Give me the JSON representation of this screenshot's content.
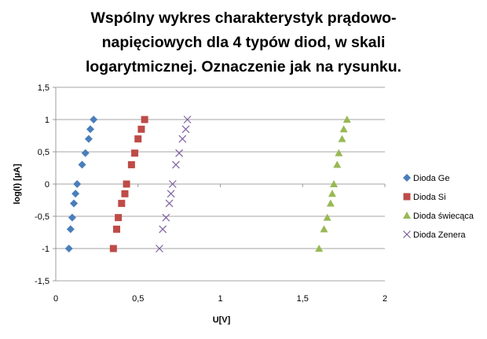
{
  "chart_data": {
    "type": "scatter",
    "title": "Wspólny wykres charakterystyk prądowo-napięciowych dla 4 typów diod, w skali logarytmicznej. Oznaczenie jak na rysunku.",
    "title_lines": [
      "Wspólny wykres charakterystyk prądowo-",
      "napięciowych dla 4 typów diod, w skali",
      "logarytmicznej. Oznaczenie jak na rysunku."
    ],
    "xlabel": "U[V]",
    "ylabel": "log(I) [µA]",
    "xlim": [
      0,
      2
    ],
    "ylim": [
      -1.5,
      1.5
    ],
    "x_ticks": [
      0,
      0.5,
      1,
      1.5,
      2
    ],
    "x_tick_labels": [
      "0",
      "0,5",
      "1",
      "1,5",
      "2"
    ],
    "y_ticks": [
      -1.5,
      -1,
      -0.5,
      0,
      0.5,
      1,
      1.5
    ],
    "y_tick_labels": [
      "-1,5",
      "-1",
      "-0,5",
      "0",
      "0,5",
      "1",
      "1,5"
    ],
    "grid": "horizontal",
    "legend_position": "right",
    "series": [
      {
        "name": "Dioda Ge",
        "marker": "diamond",
        "color": "#4a7ebb",
        "x": [
          0.08,
          0.09,
          0.1,
          0.11,
          0.12,
          0.13,
          0.16,
          0.18,
          0.2,
          0.21,
          0.23
        ],
        "y": [
          -1.0,
          -0.7,
          -0.52,
          -0.3,
          -0.15,
          0.0,
          0.3,
          0.48,
          0.7,
          0.85,
          1.0
        ]
      },
      {
        "name": "Dioda Si",
        "marker": "square",
        "color": "#be4b48",
        "x": [
          0.35,
          0.37,
          0.38,
          0.4,
          0.42,
          0.43,
          0.46,
          0.48,
          0.5,
          0.52,
          0.54
        ],
        "y": [
          -1.0,
          -0.7,
          -0.52,
          -0.3,
          -0.15,
          0.0,
          0.3,
          0.48,
          0.7,
          0.85,
          1.0
        ]
      },
      {
        "name": "Dioda świecąca",
        "marker": "triangle",
        "color": "#98b954",
        "x": [
          1.6,
          1.63,
          1.65,
          1.67,
          1.68,
          1.69,
          1.71,
          1.72,
          1.74,
          1.75,
          1.77
        ],
        "y": [
          -1.0,
          -0.7,
          -0.52,
          -0.3,
          -0.15,
          0.0,
          0.3,
          0.48,
          0.7,
          0.85,
          1.0
        ]
      },
      {
        "name": "Dioda Zenera",
        "marker": "x",
        "color": "#7d60a0",
        "x": [
          0.63,
          0.65,
          0.67,
          0.69,
          0.7,
          0.71,
          0.73,
          0.75,
          0.77,
          0.79,
          0.8
        ],
        "y": [
          -1.0,
          -0.7,
          -0.52,
          -0.3,
          -0.15,
          0.0,
          0.3,
          0.48,
          0.7,
          0.85,
          1.0
        ]
      }
    ]
  }
}
